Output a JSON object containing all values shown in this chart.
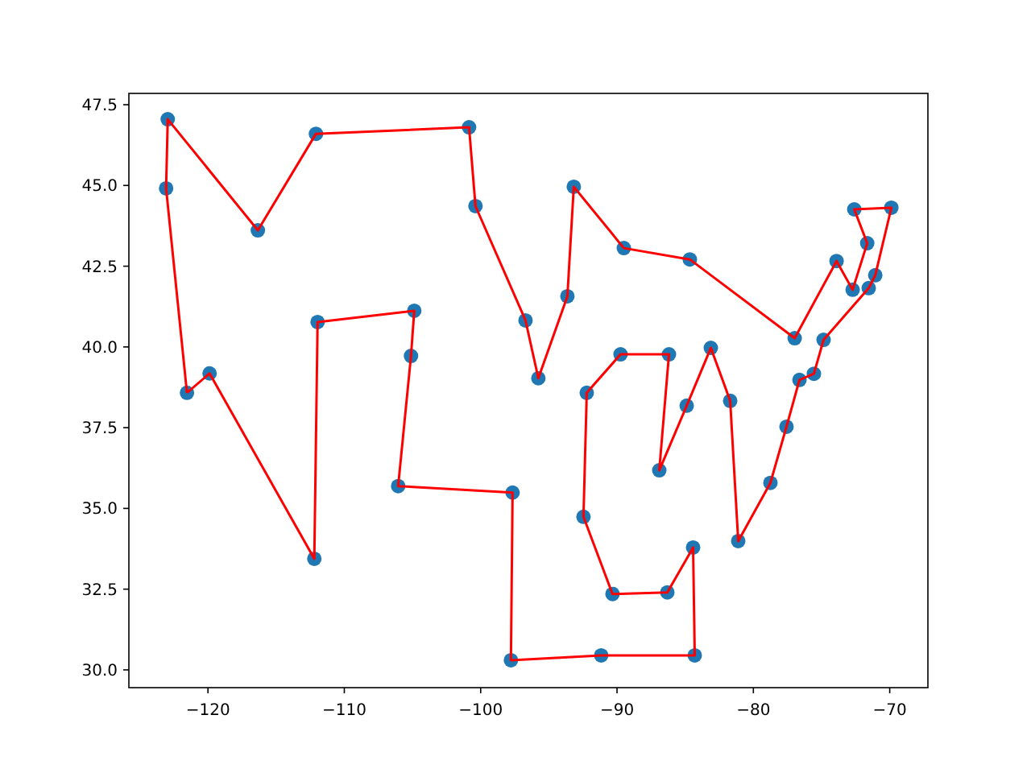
{
  "chart_data": {
    "type": "scatter",
    "xlim": [
      -125.8,
      -67.2
    ],
    "ylim": [
      29.45,
      47.85
    ],
    "xticks": [
      -120,
      -110,
      -100,
      -90,
      -80,
      -70
    ],
    "yticks": [
      {
        "value": 30,
        "label": "30.0"
      },
      {
        "value": 32.5,
        "label": "32.5"
      },
      {
        "value": 35,
        "label": "35.0"
      },
      {
        "value": 37.5,
        "label": "37.5"
      },
      {
        "value": 40,
        "label": "40.0"
      },
      {
        "value": 42.5,
        "label": "42.5"
      },
      {
        "value": 45,
        "label": "45.0"
      },
      {
        "value": 47.5,
        "label": "47.5"
      }
    ],
    "grid": false,
    "legend": false,
    "series": [
      {
        "color": "#1f77b4",
        "marker": "circle",
        "x": [
          -123.07,
          -122.95,
          -116.34,
          -112.08,
          -100.85,
          -100.38,
          -96.71,
          -95.77,
          -93.64,
          -93.17,
          -89.5,
          -84.66,
          -76.97,
          -73.9,
          -72.72,
          -71.65,
          -72.6,
          -69.88,
          -71.06,
          -71.54,
          -74.85,
          -75.56,
          -76.62,
          -77.57,
          -78.75,
          -81.11,
          -81.7,
          -83.12,
          -84.89,
          -86.9,
          -86.19,
          -89.74,
          -92.22,
          -92.46,
          -90.33,
          -86.31,
          -84.42,
          -84.3,
          -91.16,
          -97.78,
          -97.66,
          -106.05,
          -105.11,
          -104.87,
          -111.96,
          -112.2,
          -119.88,
          -121.54
        ],
        "values": [
          44.91,
          47.05,
          43.61,
          46.6,
          46.8,
          44.36,
          40.82,
          39.03,
          41.57,
          44.96,
          43.06,
          42.71,
          40.27,
          42.66,
          41.77,
          43.21,
          44.26,
          44.31,
          42.22,
          41.82,
          40.22,
          39.17,
          38.98,
          37.53,
          35.79,
          33.99,
          38.33,
          39.97,
          38.18,
          36.18,
          39.77,
          39.77,
          38.58,
          34.74,
          32.35,
          32.4,
          33.79,
          30.45,
          30.45,
          30.3,
          35.49,
          35.69,
          39.72,
          41.12,
          40.77,
          33.44,
          39.18,
          38.58
        ]
      },
      {
        "type": "line",
        "color": "#ff0000",
        "marker": "none",
        "line_style": "solid",
        "x": [
          -123.07,
          -122.95,
          -116.34,
          -112.08,
          -100.85,
          -100.38,
          -96.71,
          -95.77,
          -93.64,
          -93.17,
          -89.5,
          -84.66,
          -76.97,
          -73.9,
          -72.72,
          -71.65,
          -72.6,
          -69.88,
          -71.06,
          -71.54,
          -74.85,
          -75.56,
          -76.62,
          -77.57,
          -78.75,
          -81.11,
          -81.7,
          -83.12,
          -84.89,
          -86.9,
          -86.19,
          -89.74,
          -92.22,
          -92.46,
          -90.33,
          -86.31,
          -84.42,
          -84.3,
          -91.16,
          -97.78,
          -97.66,
          -106.05,
          -105.11,
          -104.87,
          -111.96,
          -112.2,
          -119.88,
          -121.54
        ],
        "values": [
          44.91,
          47.05,
          43.61,
          46.6,
          46.8,
          44.36,
          40.82,
          39.03,
          41.57,
          44.96,
          43.06,
          42.71,
          40.27,
          42.66,
          41.77,
          43.21,
          44.26,
          44.31,
          42.22,
          41.82,
          40.22,
          39.17,
          38.98,
          37.53,
          35.79,
          33.99,
          38.33,
          39.97,
          38.18,
          36.18,
          39.77,
          39.77,
          38.58,
          34.74,
          32.35,
          32.4,
          33.79,
          30.45,
          30.45,
          30.3,
          35.49,
          35.69,
          39.72,
          41.12,
          40.77,
          33.44,
          39.18,
          38.58
        ]
      },
      {
        "type": "line",
        "color": "#ff0000",
        "marker": "none",
        "line_style": "solid",
        "x": [
          -121.54,
          -123.07
        ],
        "values": [
          38.58,
          44.91
        ]
      }
    ]
  }
}
